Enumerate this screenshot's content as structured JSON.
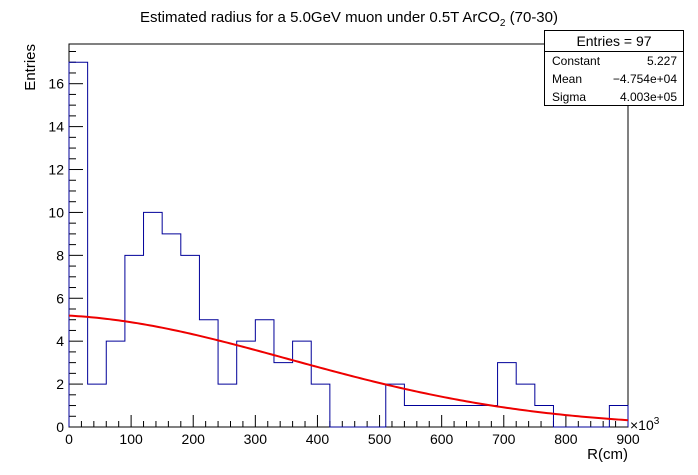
{
  "chart_data": {
    "type": "histogram",
    "title": "Estimated radius for a 5.0GeV muon under 0.5T ArCO",
    "title_subscript": "2",
    "title_suffix": " (70-30)",
    "xlabel": "R(cm)",
    "ylabel": "Entries",
    "x_exponent_label": "×10",
    "x_exponent": "3",
    "xlim": [
      0,
      900
    ],
    "ylim": [
      0,
      17.85
    ],
    "x_ticks": [
      "0",
      "100",
      "200",
      "300",
      "400",
      "500",
      "600",
      "700",
      "800",
      "900"
    ],
    "y_ticks": [
      "0",
      "2",
      "4",
      "6",
      "8",
      "10",
      "12",
      "14",
      "16"
    ],
    "bin_width": 30,
    "bin_edges_start": 0,
    "bin_contents": [
      17,
      2,
      4,
      8,
      10,
      9,
      8,
      5,
      2,
      4,
      5,
      3,
      4,
      2,
      0,
      0,
      0,
      2,
      1,
      1,
      1,
      1,
      1,
      3,
      2,
      1,
      0,
      0,
      0,
      1
    ],
    "line_color": "#000099",
    "fit": {
      "function": "gaus",
      "color": "#ee0000",
      "constant": 5.227,
      "mean": -47.54,
      "sigma": 400.3
    },
    "stats": {
      "header": "Entries = 97",
      "rows": [
        {
          "label": "Constant",
          "value": "5.227"
        },
        {
          "label": "Mean",
          "value": "−4.754e+04"
        },
        {
          "label": "Sigma",
          "value": "4.003e+05"
        }
      ]
    },
    "grid": false,
    "legend": "top-right stats box"
  }
}
